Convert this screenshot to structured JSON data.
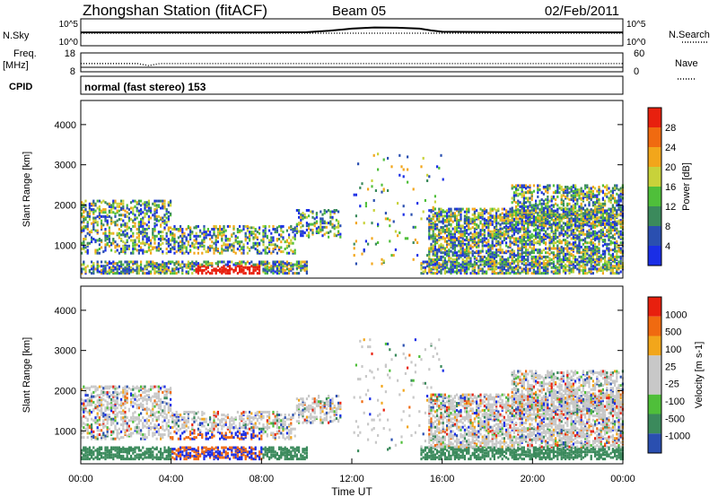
{
  "header": {
    "station_title": "Zhongshan Station (fitACF)",
    "beam": "Beam 05",
    "date": "02/Feb/2011"
  },
  "side_labels": {
    "nsky": "N.Sky",
    "nsearch": "N.Search",
    "freq_line1": "Freq.",
    "freq_line2": "[MHz]",
    "nave": "Nave",
    "cpid": "CPID",
    "cpid_value": "normal (fast stereo) 153"
  },
  "mini_axes": {
    "nsky_ticks": [
      "10^5",
      "10^0"
    ],
    "nsearch_ticks": [
      "10^5",
      "10^0"
    ],
    "freq_ticks": [
      "18",
      "8"
    ],
    "nave_ticks": [
      "60",
      "0"
    ]
  },
  "x_axis": {
    "label": "Time UT",
    "ticks": [
      "00:00",
      "04:00",
      "08:00",
      "12:00",
      "16:00",
      "20:00",
      "00:00"
    ]
  },
  "colors": {
    "power": [
      "#1a2ee6",
      "#2a4fb0",
      "#3b8a5c",
      "#4fbf3a",
      "#c8d23a",
      "#f2a61b",
      "#f06a10",
      "#e8200e"
    ],
    "velocity": [
      "#e8200e",
      "#f06a10",
      "#f2a61b",
      "#c8c8c8",
      "#c8c8c8",
      "#4fbf3a",
      "#3b8a5c",
      "#2a4fb0",
      "#1a2ee6"
    ]
  },
  "chart_data": [
    {
      "type": "line",
      "ylabel": "N.Sky",
      "y_scale": "log",
      "ylim": [
        1,
        100000
      ],
      "x_range_hours": [
        0,
        24
      ],
      "series": [
        {
          "x": [
            0,
            4,
            8,
            10,
            11,
            12,
            13,
            14,
            15,
            15.5,
            16,
            20,
            24
          ],
          "values": [
            300,
            300,
            310,
            330,
            600,
            1500,
            2500,
            2200,
            1500,
            700,
            400,
            320,
            300
          ]
        }
      ]
    },
    {
      "type": "scatter",
      "ylabel": "Freq. [MHz]",
      "ylim": [
        8,
        18
      ],
      "x_range_hours": [
        0,
        24
      ],
      "series": [
        {
          "x": [
            0,
            2.5,
            3,
            3.5,
            4,
            12,
            20,
            24
          ],
          "values": [
            12.4,
            12.4,
            11.3,
            12.4,
            12.4,
            12.4,
            12.4,
            12.4
          ]
        }
      ]
    },
    {
      "type": "heatmap",
      "title": "",
      "xlabel": "Time UT",
      "ylabel": "Slant Range [km]",
      "colorbar_label": "Power [dB]",
      "colorbar_ticks": [
        "28",
        "24",
        "20",
        "16",
        "12",
        "8",
        "4"
      ],
      "ylim": [
        180,
        4600
      ],
      "y_ticks": [
        "4000",
        "3000",
        "2000",
        "1000"
      ],
      "x_range_hours": [
        0,
        24
      ]
    },
    {
      "type": "heatmap",
      "title": "",
      "xlabel": "Time UT",
      "ylabel": "Slant Range [km]",
      "colorbar_label": "Velocity [m s-1]",
      "colorbar_ticks": [
        "1000",
        "500",
        "100",
        "25",
        "-25",
        "-100",
        "-500",
        "-1000"
      ],
      "ylim": [
        180,
        4600
      ],
      "y_ticks": [
        "4000",
        "3000",
        "2000",
        "1000"
      ],
      "x_range_hours": [
        0,
        24
      ]
    }
  ]
}
